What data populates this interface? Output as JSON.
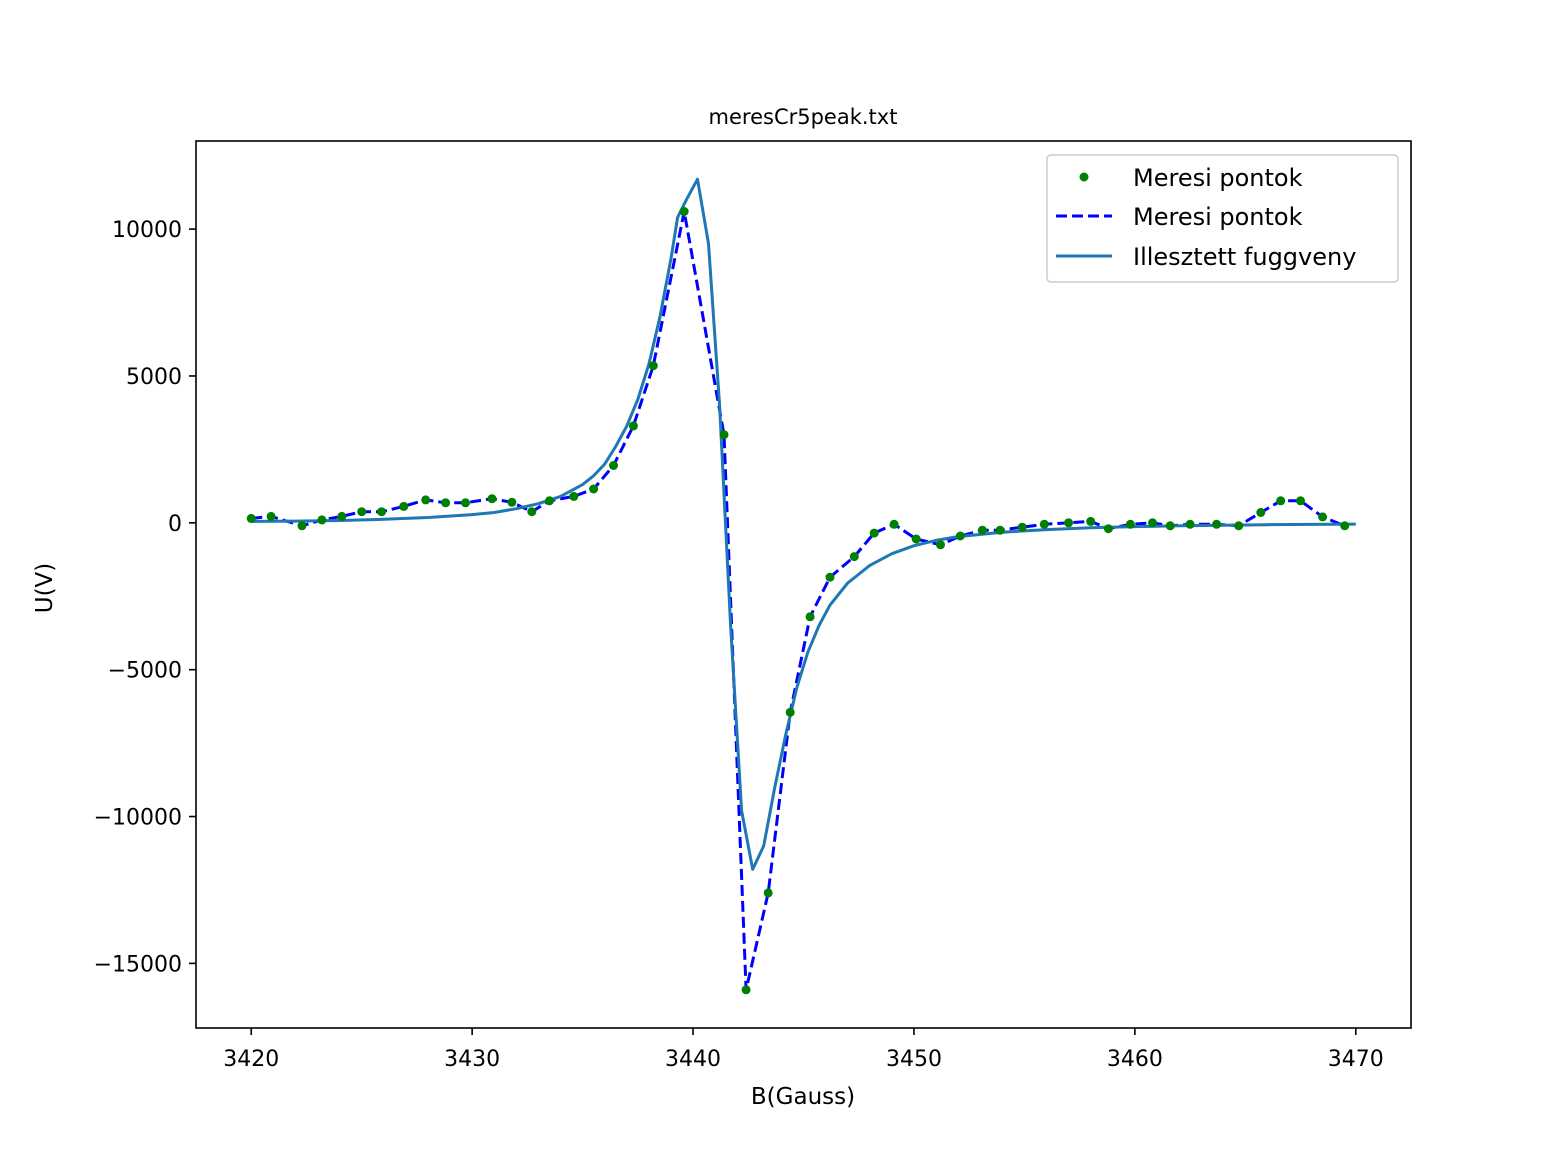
{
  "chart_data": {
    "type": "line",
    "title": "meresCr5peak.txt",
    "xlabel": "B(Gauss)",
    "ylabel": "U(V)",
    "xlim": [
      3417.5,
      3472.5
    ],
    "ylim": [
      -17200,
      13000
    ],
    "xticks": [
      3420,
      3430,
      3440,
      3450,
      3460,
      3470
    ],
    "xtick_labels": [
      "3420",
      "3430",
      "3440",
      "3450",
      "3460",
      "3470"
    ],
    "yticks": [
      10000,
      5000,
      0,
      -5000,
      -10000,
      -15000
    ],
    "ytick_labels": [
      "10000",
      "5000",
      "0",
      "−5000",
      "−10000",
      "−15000"
    ],
    "grid": false,
    "legend_position": "top-right",
    "series": [
      {
        "name": "Meresi pontok",
        "style": "points",
        "color": "#008000",
        "x": [
          3420.0,
          3420.9,
          3422.3,
          3423.2,
          3424.1,
          3425.0,
          3425.9,
          3426.9,
          3427.9,
          3428.8,
          3429.7,
          3430.9,
          3431.8,
          3432.7,
          3433.5,
          3434.6,
          3435.5,
          3436.4,
          3437.3,
          3438.2,
          3439.6,
          3441.4,
          3442.4,
          3443.4,
          3444.4,
          3445.3,
          3446.2,
          3447.3,
          3448.2,
          3449.1,
          3450.1,
          3451.2,
          3452.1,
          3453.1,
          3453.9,
          3454.9,
          3455.9,
          3457.0,
          3458.0,
          3458.8,
          3459.8,
          3460.8,
          3461.6,
          3462.5,
          3463.7,
          3464.7,
          3465.7,
          3466.6,
          3467.5,
          3468.5,
          3469.5
        ],
        "y": [
          150,
          220,
          -100,
          100,
          220,
          380,
          380,
          560,
          780,
          680,
          680,
          820,
          700,
          380,
          750,
          900,
          1150,
          1950,
          3300,
          5350,
          10600,
          3000,
          -15900,
          -12600,
          -6450,
          -3200,
          -1850,
          -1150,
          -350,
          -50,
          -550,
          -750,
          -450,
          -250,
          -250,
          -150,
          -50,
          0,
          50,
          -200,
          -50,
          0,
          -100,
          -50,
          -50,
          -100,
          350,
          750,
          750,
          200,
          -100
        ]
      },
      {
        "name": "Meresi pontok",
        "style": "dashed",
        "color": "#0000ff",
        "x": [
          3420.0,
          3420.9,
          3422.3,
          3423.2,
          3424.1,
          3425.0,
          3425.9,
          3426.9,
          3427.9,
          3428.8,
          3429.7,
          3430.9,
          3431.8,
          3432.7,
          3433.5,
          3434.6,
          3435.5,
          3436.4,
          3437.3,
          3438.2,
          3439.6,
          3441.4,
          3442.4,
          3443.4,
          3444.4,
          3445.3,
          3446.2,
          3447.3,
          3448.2,
          3449.1,
          3450.1,
          3451.2,
          3452.1,
          3453.1,
          3453.9,
          3454.9,
          3455.9,
          3457.0,
          3458.0,
          3458.8,
          3459.8,
          3460.8,
          3461.6,
          3462.5,
          3463.7,
          3464.7,
          3465.7,
          3466.6,
          3467.5,
          3468.5,
          3469.5
        ],
        "y": [
          150,
          220,
          -100,
          100,
          220,
          380,
          380,
          560,
          780,
          680,
          680,
          820,
          700,
          380,
          750,
          900,
          1150,
          1950,
          3300,
          5350,
          10600,
          3000,
          -15900,
          -12600,
          -6450,
          -3200,
          -1850,
          -1150,
          -350,
          -50,
          -550,
          -750,
          -450,
          -250,
          -250,
          -150,
          -50,
          0,
          50,
          -200,
          -50,
          0,
          -100,
          -50,
          -50,
          -100,
          350,
          750,
          750,
          200,
          -100
        ]
      },
      {
        "name": "Illesztett fuggveny",
        "style": "solid",
        "color": "#1f77b4",
        "x": [
          3420.0,
          3422.0,
          3424.0,
          3426.0,
          3428.0,
          3430.0,
          3431.0,
          3432.0,
          3433.0,
          3434.0,
          3435.0,
          3435.5,
          3436.0,
          3436.5,
          3437.0,
          3437.5,
          3438.0,
          3438.5,
          3439.0,
          3439.3,
          3439.7,
          3440.2,
          3440.7,
          3441.2,
          3441.7,
          3442.2,
          3442.7,
          3443.2,
          3443.7,
          3444.2,
          3444.7,
          3445.2,
          3445.7,
          3446.2,
          3447.0,
          3448.0,
          3449.0,
          3450.0,
          3451.0,
          3452.0,
          3454.0,
          3456.0,
          3458.0,
          3460.0,
          3462.0,
          3464.0,
          3466.0,
          3468.0,
          3470.0
        ],
        "y": [
          50,
          60,
          80,
          120,
          180,
          280,
          350,
          480,
          650,
          900,
          1300,
          1600,
          2000,
          2600,
          3300,
          4200,
          5400,
          7000,
          9000,
          10400,
          11000,
          11700,
          9500,
          4000,
          -3500,
          -9800,
          -11800,
          -11000,
          -9000,
          -7200,
          -5600,
          -4400,
          -3500,
          -2800,
          -2050,
          -1450,
          -1050,
          -780,
          -600,
          -470,
          -320,
          -230,
          -170,
          -130,
          -100,
          -80,
          -65,
          -55,
          -45
        ]
      }
    ]
  }
}
